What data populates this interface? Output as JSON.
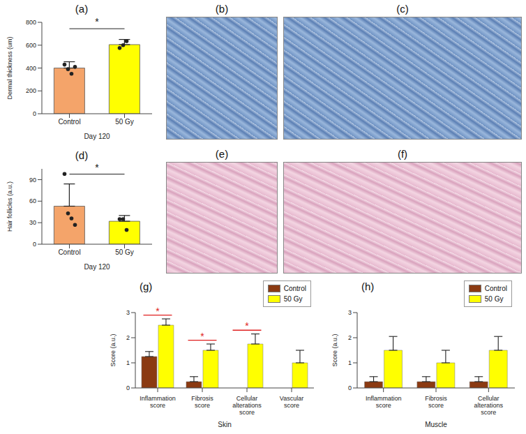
{
  "chart_data": [
    {
      "type": "bar",
      "title": "(a)",
      "categories": [
        "Control",
        "50 Gy"
      ],
      "values": [
        400,
        605
      ],
      "errors": [
        55,
        45
      ],
      "points": [
        [
          430,
          390,
          350,
          410
        ],
        [
          575,
          600,
          635
        ]
      ],
      "colors": [
        "#F4A46A",
        "#FFFF00"
      ],
      "ylabel": "Dermal thickness (um)",
      "xlabel": "Day 120",
      "ylim": [
        0,
        800
      ],
      "yticks": [
        0,
        200,
        400,
        600,
        800
      ],
      "annotations": [
        {
          "text": "*",
          "between": [
            "Control",
            "50 Gy"
          ]
        }
      ]
    },
    {
      "type": "bar",
      "title": "(d)",
      "categories": [
        "Control",
        "50 Gy"
      ],
      "values": [
        53,
        32
      ],
      "errors": [
        31,
        8
      ],
      "points": [
        [
          98,
          43,
          36,
          27
        ],
        [
          35,
          35,
          20
        ]
      ],
      "colors": [
        "#F4A46A",
        "#FFFF00"
      ],
      "ylabel": "Hair follicles (a.u.)",
      "xlabel": "Day 120",
      "ylim": [
        0,
        105
      ],
      "yticks": [
        0,
        30,
        60,
        90
      ],
      "annotations": [
        {
          "text": "*",
          "between": [
            "Control",
            "50 Gy"
          ]
        }
      ]
    },
    {
      "type": "bar",
      "title": "(g)",
      "categories": [
        "Inflammation score",
        "Fibrosis score",
        "Cellular alterations score",
        "Vascular score"
      ],
      "series": [
        {
          "name": "Control",
          "color": "#8B3A12",
          "values": [
            1.25,
            0.25,
            0,
            0
          ],
          "errors": [
            0.2,
            0.2,
            0,
            0
          ]
        },
        {
          "name": "50 Gy",
          "color": "#FFFF00",
          "values": [
            2.5,
            1.5,
            1.75,
            1.0
          ],
          "errors": [
            0.25,
            0.25,
            0.4,
            0.5
          ]
        }
      ],
      "ylabel": "Score (a.u.)",
      "xlabel": "Skin",
      "ylim": [
        0,
        3
      ],
      "yticks": [
        0,
        1,
        2,
        3
      ],
      "legend": "upper right",
      "annotations": [
        {
          "text": "*",
          "category": "Inflammation score"
        },
        {
          "text": "*",
          "category": "Fibrosis score"
        },
        {
          "text": "*",
          "category": "Cellular alterations score"
        }
      ]
    },
    {
      "type": "bar",
      "title": "(h)",
      "categories": [
        "Inflammation score",
        "Fibrosis score",
        "Cellular alterations score"
      ],
      "series": [
        {
          "name": "Control",
          "color": "#8B3A12",
          "values": [
            0.25,
            0.25,
            0.25
          ],
          "errors": [
            0.2,
            0.2,
            0.2
          ]
        },
        {
          "name": "50 Gy",
          "color": "#FFFF00",
          "values": [
            1.5,
            1.0,
            1.5
          ],
          "errors": [
            0.55,
            0.5,
            0.55
          ]
        }
      ],
      "ylabel": "Score (a.u.)",
      "xlabel": "Muscle",
      "ylim": [
        0,
        3
      ],
      "yticks": [
        0,
        1,
        2,
        3
      ],
      "legend": "upper right"
    }
  ],
  "image_panels": [
    {
      "label": "(b)"
    },
    {
      "label": "(c)"
    },
    {
      "label": "(e)"
    },
    {
      "label": "(f)"
    }
  ]
}
